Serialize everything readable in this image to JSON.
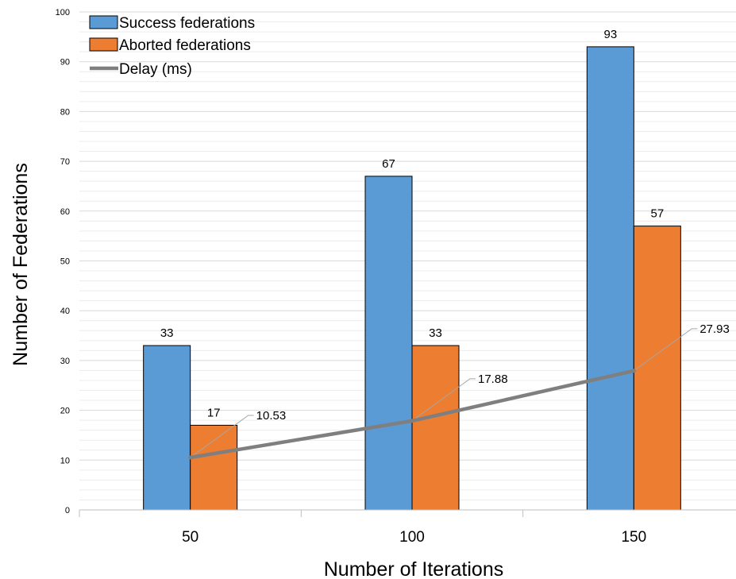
{
  "chart_data": {
    "type": "bar",
    "categories": [
      "50",
      "100",
      "150"
    ],
    "series": [
      {
        "name": "Success federations",
        "type": "bar",
        "color": "#5b9bd5",
        "values": [
          33,
          67,
          93
        ]
      },
      {
        "name": "Aborted federations",
        "type": "bar",
        "color": "#ed7d31",
        "values": [
          17,
          33,
          57
        ]
      },
      {
        "name": "Delay (ms)",
        "type": "line",
        "color": "#7f7f7f",
        "values": [
          10.53,
          17.88,
          27.93
        ]
      }
    ],
    "xlabel": "Number of Iterations",
    "ylabel": "Number of Federations",
    "ylim": [
      0,
      100
    ],
    "yticks": [
      0,
      10,
      20,
      30,
      40,
      50,
      60,
      70,
      80,
      90,
      100
    ],
    "grid": true,
    "legend_position": "top-left",
    "data_labels": {
      "Success federations": [
        "33",
        "67",
        "93"
      ],
      "Aborted federations": [
        "17",
        "33",
        "57"
      ],
      "Delay (ms)": [
        "10.53",
        "17.88",
        "27.93"
      ]
    }
  }
}
